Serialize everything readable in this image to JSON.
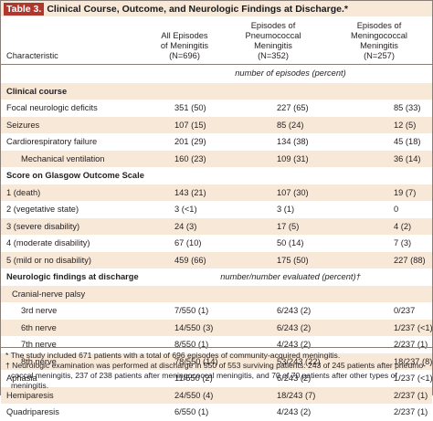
{
  "title": {
    "tag": "Table 3.",
    "text": "Clinical Course, Outcome, and Neurologic Findings at Discharge.*"
  },
  "columns": {
    "characteristic": "Characteristic",
    "all": [
      "All Episodes",
      "of Meningitis",
      "(N=696)"
    ],
    "pneumo": [
      "Episodes of Pneumococcal",
      "Meningitis",
      "(N=352)"
    ],
    "mening": [
      "Episodes of Meningococcal",
      "Meningitis",
      "(N=257)"
    ]
  },
  "unit_episodes": "number of episodes (percent)",
  "unit_neuro": "number/number evaluated (percent)†",
  "sections": {
    "clinical": "Clinical course",
    "glasgow": "Score on Glasgow Outcome Scale",
    "neuro": "Neurologic findings at discharge"
  },
  "clinical_rows": [
    {
      "label": "Focal neurologic deficits",
      "all": "351 (50)",
      "pneumo": "227 (65)",
      "mening": "85 (33)"
    },
    {
      "label": "Seizures",
      "all": "107 (15)",
      "pneumo": "85 (24)",
      "mening": "12 (5)"
    },
    {
      "label": "Cardiorespiratory failure",
      "all": "201 (29)",
      "pneumo": "134 (38)",
      "mening": "45 (18)"
    },
    {
      "label": "Mechanical ventilation",
      "all": "160 (23)",
      "pneumo": "109 (31)",
      "mening": "36 (14)"
    }
  ],
  "glasgow_rows": [
    {
      "label": "1 (death)",
      "all": "143 (21)",
      "pneumo": "107 (30)",
      "mening": "19 (7)"
    },
    {
      "label": "2 (vegetative state)",
      "all": "3 (<1)",
      "pneumo": "3 (1)",
      "mening": "0"
    },
    {
      "label": "3 (severe disability)",
      "all": "24 (3)",
      "pneumo": "17 (5)",
      "mening": "4 (2)"
    },
    {
      "label": "4 (moderate disability)",
      "all": "67 (10)",
      "pneumo": "50 (14)",
      "mening": "7 (3)"
    },
    {
      "label": "5 (mild or no disability)",
      "all": "459 (66)",
      "pneumo": "175 (50)",
      "mening": "227 (88)"
    }
  ],
  "cranial_label": "Cranial-nerve palsy",
  "cranial_rows": [
    {
      "label": "3rd nerve",
      "all": "7/550 (1)",
      "pneumo": "6/243 (2)",
      "mening": "0/237"
    },
    {
      "label": "6th nerve",
      "all": "14/550 (3)",
      "pneumo": "6/243 (2)",
      "mening": "1/237 (<1)"
    },
    {
      "label": "7th nerve",
      "all": "8/550 (1)",
      "pneumo": "4/243 (2)",
      "mening": "2/237 (1)"
    },
    {
      "label": "8th nerve",
      "all": "78/550 (14)",
      "pneumo": "53/243 (22)",
      "mening": "18/237 (8)"
    }
  ],
  "other_rows": [
    {
      "label": "Aphasia",
      "all": "11/550 (2)",
      "pneumo": "6/243 (2)",
      "mening": "1/237 (<1)"
    },
    {
      "label": "Hemiparesis",
      "all": "24/550 (4)",
      "pneumo": "18/243 (7)",
      "mening": "2/237 (1)"
    },
    {
      "label": "Quadriparesis",
      "all": "6/550 (1)",
      "pneumo": "4/243 (2)",
      "mening": "2/237 (1)"
    }
  ],
  "footnotes": [
    "* The study included 671 patients with a total of 696 episodes of community-acquired meningitis.",
    "† Neurologic examination was performed at discharge in 550 of 553 surviving patients: 243 of 245 patients after pneumo-",
    "coccal meningitis, 237 of 238 patients after meningococcal meningitis, and 70 of 70 patients after other types of meningitis."
  ],
  "colors": {
    "accent": "#b0372e",
    "shade": "#f8e8d8",
    "rule": "#8a7e78"
  }
}
